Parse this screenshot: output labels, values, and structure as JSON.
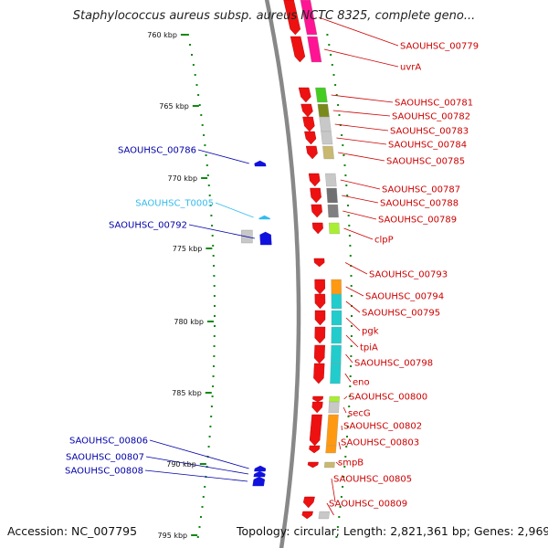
{
  "title": "Staphylococcus aureus subsp. aureus NCTC 8325, complete geno...",
  "footer": {
    "accession": "Accession: NC_007795",
    "topology": "Topology: circular; Length: 2,821,361 bp; Genes: 2,969"
  },
  "colors": {
    "forward_gene": "#ee1111",
    "reverse_gene": "#1111dd",
    "rna_gene": "#33bbee",
    "forward_label": "#cc0000",
    "reverse_label": "#0000aa",
    "rna_label": "#33bbee",
    "backbone": "#888888",
    "ticks": "#118811"
  },
  "scale_labels": [
    "760 kbp",
    "765 kbp",
    "770 kbp",
    "775 kbp",
    "780 kbp",
    "785 kbp",
    "790 kbp",
    "795 kbp"
  ],
  "forward_genes": [
    {
      "label": "SAOUHSC_00779",
      "cog": "#ff1493"
    },
    {
      "label": "uvrA",
      "cog": "#ff1493"
    },
    {
      "label": "SAOUHSC_00781",
      "cog": "#44cc22"
    },
    {
      "label": "SAOUHSC_00782",
      "cog": "#7a8a1a"
    },
    {
      "label": "SAOUHSC_00783",
      "cog": "#c8c8c8"
    },
    {
      "label": "SAOUHSC_00784",
      "cog": "#c8c8c8"
    },
    {
      "label": "SAOUHSC_00785",
      "cog": "#c8b870"
    },
    {
      "label": "SAOUHSC_00787",
      "cog": "#c8c8c8"
    },
    {
      "label": "SAOUHSC_00788",
      "cog": "#707070"
    },
    {
      "label": "SAOUHSC_00789",
      "cog": "#808080"
    },
    {
      "label": "clpP",
      "cog": "#aaee33"
    },
    {
      "label": "SAOUHSC_00793",
      "cog": ""
    },
    {
      "label": "SAOUHSC_00794",
      "cog": "#ff9911"
    },
    {
      "label": "SAOUHSC_00795",
      "cog": "#22cccc"
    },
    {
      "label": "pgk",
      "cog": "#22cccc"
    },
    {
      "label": "tpiA",
      "cog": "#22cccc"
    },
    {
      "label": "SAOUHSC_00798",
      "cog": "#22cccc"
    },
    {
      "label": "eno",
      "cog": "#22cccc"
    },
    {
      "label": "SAOUHSC_00800",
      "cog": "#aaee33"
    },
    {
      "label": "secG",
      "cog": "#c8c8c8"
    },
    {
      "label": "SAOUHSC_00802",
      "cog": "#ff9911"
    },
    {
      "label": "SAOUHSC_00803",
      "cog": "#ff9911"
    },
    {
      "label": "smpB",
      "cog": "#c8b870"
    },
    {
      "label": "SAOUHSC_00805",
      "cog": ""
    },
    {
      "label": "SAOUHSC_00809",
      "cog": "#c8c8c8"
    }
  ],
  "reverse_genes": [
    {
      "label": "SAOUHSC_00786",
      "type": "protein"
    },
    {
      "label": "SAOUHSC_T0005",
      "type": "tRNA"
    },
    {
      "label": "SAOUHSC_00792",
      "type": "protein"
    },
    {
      "label": "SAOUHSC_00806",
      "type": "protein"
    },
    {
      "label": "SAOUHSC_00807",
      "type": "protein"
    },
    {
      "label": "SAOUHSC_00808",
      "type": "protein"
    }
  ]
}
